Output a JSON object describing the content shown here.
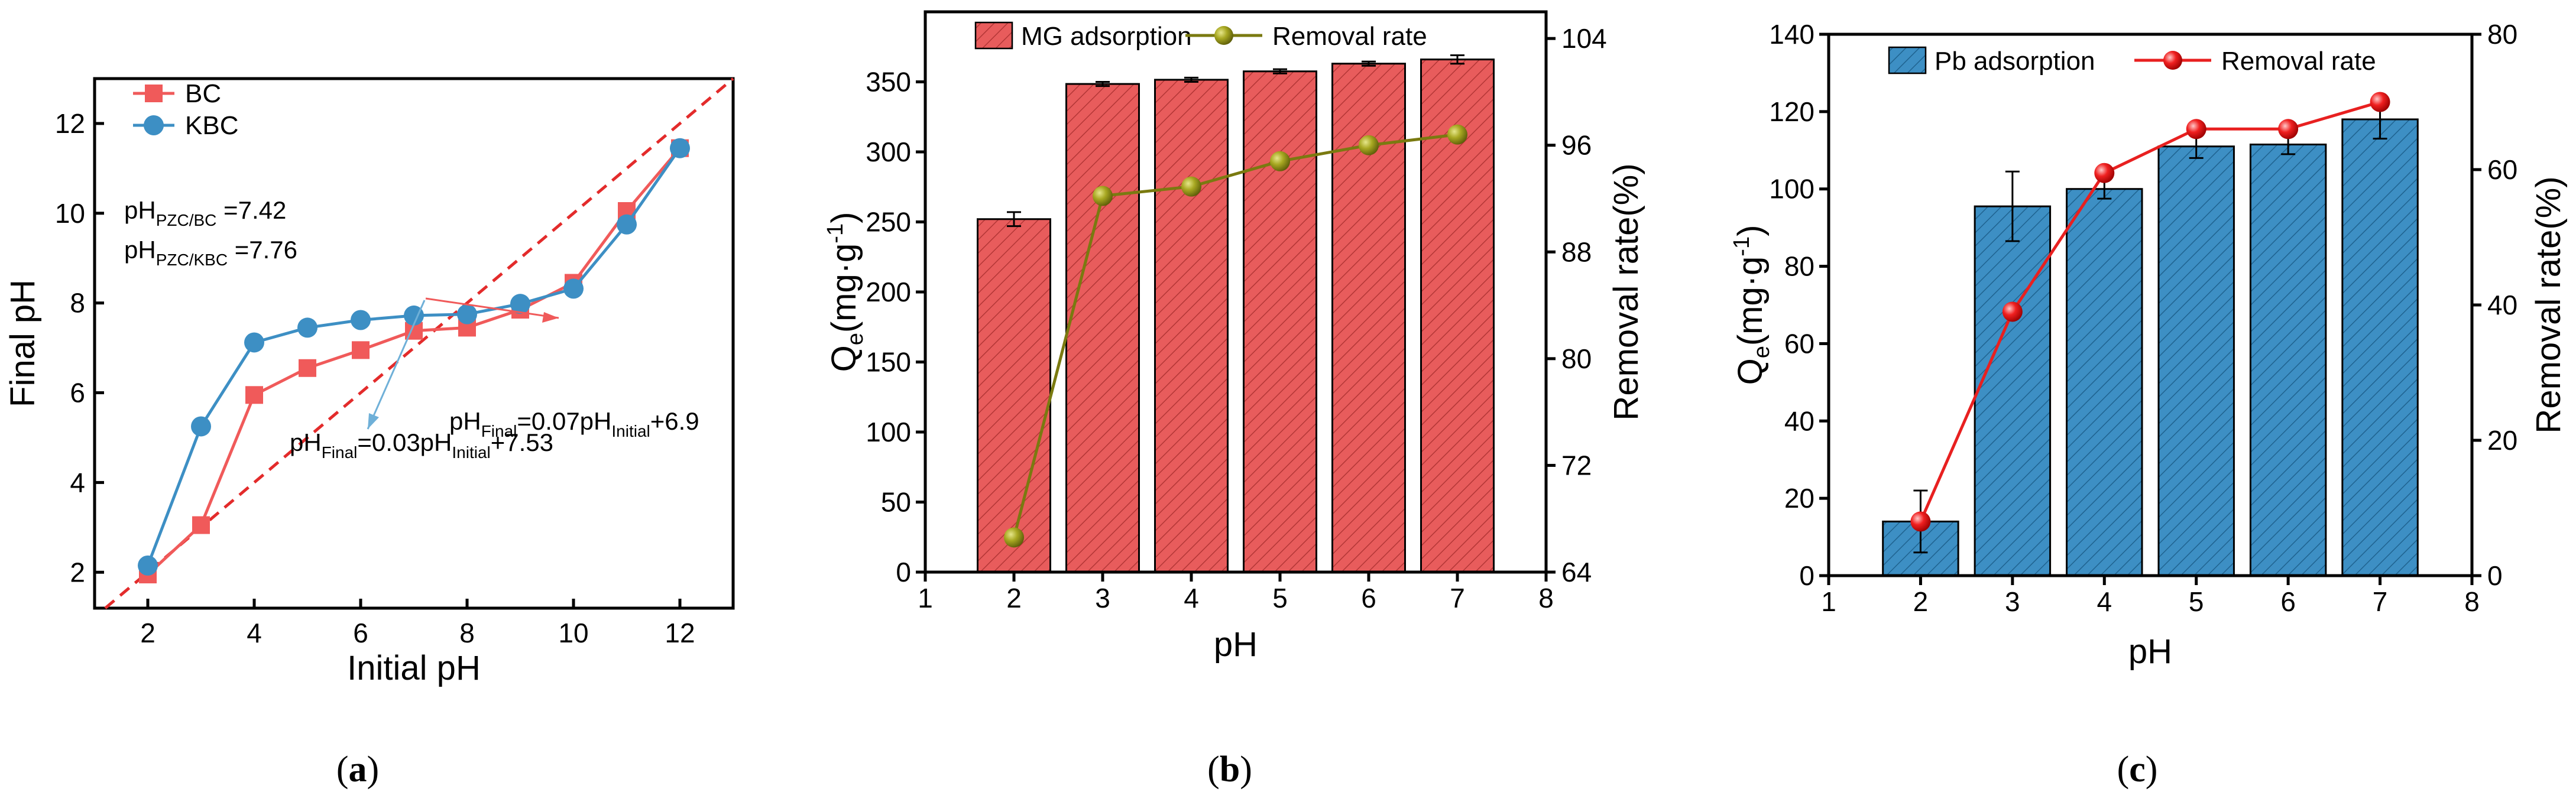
{
  "chart_data": [
    {
      "type": "line",
      "panel": "(a)",
      "caption": {
        "open": "(",
        "letter": "a",
        "close": ")"
      },
      "xlabel": "Initial pH",
      "ylabel": "Final pH",
      "xlim": [
        1,
        13
      ],
      "ylim": [
        1.2,
        13
      ],
      "xticks": [
        2,
        4,
        6,
        8,
        10,
        12
      ],
      "yticks": [
        2,
        4,
        6,
        8,
        10,
        12
      ],
      "series": [
        {
          "name": "BC",
          "color": "#f05a5a",
          "marker": "square",
          "x": [
            2,
            3,
            4,
            5,
            6,
            7,
            8,
            9,
            10,
            11,
            12
          ],
          "y": [
            1.95,
            3.05,
            5.95,
            6.55,
            6.95,
            7.38,
            7.45,
            7.85,
            8.45,
            10.05,
            11.45
          ]
        },
        {
          "name": "KBC",
          "color": "#3d8fc4",
          "marker": "circle",
          "x": [
            2,
            3,
            4,
            5,
            6,
            7,
            8,
            9,
            10,
            11,
            12
          ],
          "y": [
            2.15,
            5.25,
            7.12,
            7.45,
            7.62,
            7.72,
            7.75,
            7.98,
            8.32,
            9.75,
            11.45
          ]
        }
      ],
      "reference_line": {
        "x": [
          1,
          13
        ],
        "y": [
          1,
          13
        ],
        "color": "#e32b2b"
      },
      "pzc_bc": {
        "prefix": "pH",
        "sub": "PZC/BC",
        "value": " =7.42"
      },
      "pzc_kbc": {
        "prefix": "pH",
        "sub": "PZC/KBC",
        "value": " =7.76"
      },
      "eq_bc": {
        "a": "pH",
        "a_sub": "Final",
        "b": "=0.07pH",
        "b_sub": "Initial",
        "c": "+6.9"
      },
      "eq_kbc": {
        "a": "pH",
        "a_sub": "Final",
        "b": "=0.03pH",
        "b_sub": "Initial",
        "c": "+7.53"
      }
    },
    {
      "type": "bar",
      "panel": "(b)",
      "caption": {
        "open": "(",
        "letter": "b",
        "close": ")"
      },
      "xlabel": "pH",
      "ylabel": {
        "main": "Q",
        "sub": "e",
        "rest": "(mg·g",
        "sup": "-1",
        "end": ")"
      },
      "y2label": "Removal rate(%)",
      "xlim": [
        1,
        8
      ],
      "ylim": [
        0,
        400
      ],
      "y2lim": [
        64,
        106
      ],
      "xticks": [
        1,
        2,
        3,
        4,
        5,
        6,
        7,
        8
      ],
      "yticks": [
        0,
        50,
        100,
        150,
        200,
        250,
        300,
        350
      ],
      "y2ticks": [
        64,
        72,
        80,
        88,
        96,
        104
      ],
      "categories": [
        2,
        3,
        4,
        5,
        6,
        7
      ],
      "series": [
        {
          "name": "MG adsorption",
          "color": "#e85c5c",
          "values": [
            252,
            348.5,
            351.5,
            357.5,
            363,
            366
          ],
          "errors": [
            5,
            1.5,
            1.5,
            1.5,
            1.5,
            3
          ]
        },
        {
          "name": "Removal rate",
          "color": "#7a7a10",
          "axis": "right",
          "values": [
            66.6,
            92.2,
            92.9,
            94.8,
            96,
            96.8
          ]
        }
      ]
    },
    {
      "type": "bar",
      "panel": "(c)",
      "caption": {
        "open": "(",
        "letter": "c",
        "close": ")"
      },
      "xlabel": "pH",
      "ylabel": {
        "main": "Q",
        "sub": "e",
        "rest": "(mg·g",
        "sup": "-1",
        "end": ")"
      },
      "y2label": "Removal rate(%)",
      "xlim": [
        1,
        8
      ],
      "ylim": [
        0,
        140
      ],
      "y2lim": [
        0,
        80
      ],
      "xticks": [
        1,
        2,
        3,
        4,
        5,
        6,
        7,
        8
      ],
      "yticks": [
        0,
        20,
        40,
        60,
        80,
        100,
        120,
        140
      ],
      "y2ticks": [
        0,
        20,
        40,
        60,
        80
      ],
      "categories": [
        2,
        3,
        4,
        5,
        6,
        7
      ],
      "series": [
        {
          "name": "Pb adsorption",
          "color": "#3d8fc4",
          "values": [
            14,
            95.5,
            100,
            111,
            111.5,
            118
          ],
          "errors": [
            8,
            9,
            2.5,
            3,
            2.5,
            5
          ]
        },
        {
          "name": "Removal rate",
          "color": "#e82020",
          "axis": "right",
          "values": [
            8,
            39,
            59.5,
            66,
            66,
            70
          ]
        }
      ]
    }
  ]
}
